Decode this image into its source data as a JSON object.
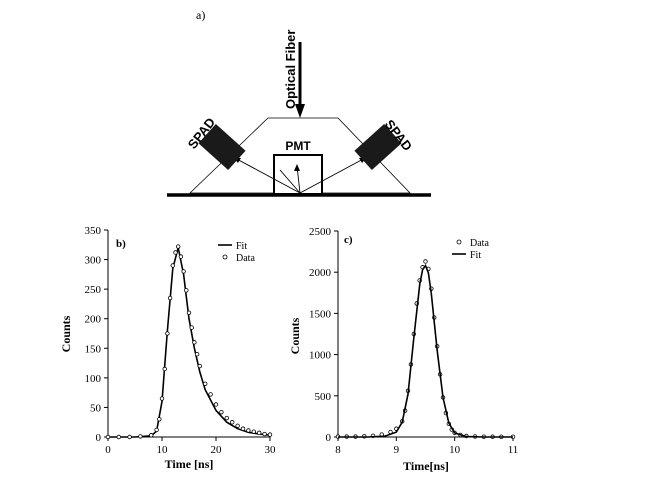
{
  "panel_a": {
    "label": "a)",
    "fiber_label": "Optical Fiber",
    "pmt_label": "PMT",
    "spad_left_label": "SPAD",
    "spad_right_label": "SPAD"
  },
  "chart_data": [
    {
      "type": "line",
      "panel_label": "b)",
      "xlabel": "Time [ns]",
      "ylabel": "Counts",
      "xlim": [
        0,
        30
      ],
      "ylim": [
        0,
        350
      ],
      "xticks": [
        "0",
        "10",
        "20",
        "30"
      ],
      "yticks": [
        "0",
        "50",
        "100",
        "150",
        "200",
        "250",
        "300",
        "350"
      ],
      "legend": [
        "Fit",
        "Data"
      ],
      "legend_position": "top-right",
      "grid": false,
      "series": [
        {
          "name": "Fit",
          "style": "solid",
          "x": [
            0,
            5,
            8,
            9,
            10,
            11,
            12,
            13,
            14,
            15,
            16,
            17,
            18,
            20,
            22,
            24,
            26,
            28,
            30
          ],
          "y": [
            0,
            0,
            2,
            10,
            60,
            180,
            285,
            320,
            275,
            200,
            150,
            110,
            80,
            45,
            25,
            14,
            8,
            5,
            3
          ]
        },
        {
          "name": "Data",
          "style": "marker",
          "x": [
            0,
            2,
            4,
            6,
            8,
            9,
            9.5,
            10,
            10.5,
            11,
            11.5,
            12,
            12.5,
            13,
            13.5,
            14,
            14.5,
            15,
            15.5,
            16,
            16.5,
            17,
            18,
            19,
            20,
            21,
            22,
            23,
            24,
            25,
            26,
            27,
            28,
            29,
            30
          ],
          "y": [
            0,
            0,
            0,
            1,
            3,
            12,
            30,
            65,
            115,
            175,
            235,
            290,
            312,
            322,
            305,
            280,
            248,
            210,
            185,
            160,
            140,
            120,
            90,
            72,
            55,
            42,
            32,
            25,
            19,
            14,
            11,
            9,
            7,
            5,
            4
          ]
        }
      ]
    },
    {
      "type": "line",
      "panel_label": "c)",
      "xlabel": "Time[ns]",
      "ylabel": "Counts",
      "xlim": [
        8,
        11
      ],
      "ylim": [
        0,
        2500
      ],
      "xticks": [
        "8",
        "9",
        "10",
        "11"
      ],
      "yticks": [
        "0",
        "500",
        "1000",
        "1500",
        "2000",
        "2500"
      ],
      "legend": [
        "Data",
        "Fit"
      ],
      "legend_position": "top-right",
      "grid": false,
      "series": [
        {
          "name": "Data",
          "style": "marker",
          "x": [
            8,
            8.15,
            8.3,
            8.45,
            8.6,
            8.75,
            8.9,
            9.0,
            9.1,
            9.15,
            9.2,
            9.25,
            9.3,
            9.35,
            9.4,
            9.45,
            9.5,
            9.55,
            9.6,
            9.65,
            9.7,
            9.75,
            9.8,
            9.85,
            9.9,
            9.95,
            10.0,
            10.1,
            10.2,
            10.35,
            10.5,
            10.65,
            10.8,
            11
          ],
          "y": [
            5,
            5,
            5,
            8,
            15,
            30,
            60,
            100,
            190,
            320,
            560,
            880,
            1250,
            1620,
            1900,
            2060,
            2130,
            2040,
            1800,
            1450,
            1100,
            760,
            480,
            290,
            160,
            90,
            50,
            25,
            12,
            6,
            4,
            3,
            2,
            2
          ]
        },
        {
          "name": "Fit",
          "style": "solid",
          "x": [
            8,
            8.5,
            8.8,
            9.0,
            9.1,
            9.2,
            9.3,
            9.4,
            9.45,
            9.5,
            9.55,
            9.6,
            9.7,
            9.8,
            9.9,
            10.0,
            10.2,
            10.5,
            11
          ],
          "y": [
            0,
            0,
            10,
            60,
            180,
            520,
            1200,
            1850,
            2030,
            2080,
            1990,
            1740,
            1050,
            480,
            170,
            50,
            5,
            0,
            0
          ]
        }
      ]
    }
  ]
}
